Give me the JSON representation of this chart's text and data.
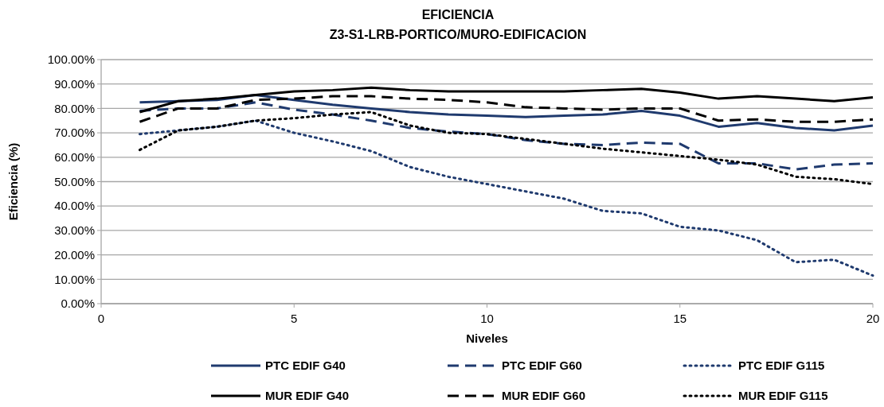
{
  "chart_data": {
    "type": "line",
    "title": "EFICIENCIA",
    "subtitle": "Z3-S1-LRB-PORTICO/MURO-EDIFICACION",
    "xlabel": "Niveles",
    "ylabel": "Eficiencia  (%)",
    "x": [
      1,
      2,
      3,
      4,
      5,
      6,
      7,
      8,
      9,
      10,
      11,
      12,
      13,
      14,
      15,
      16,
      17,
      18,
      19,
      20
    ],
    "xlim": [
      0,
      20
    ],
    "xticks": [
      0,
      5,
      10,
      15,
      20
    ],
    "ylim": [
      0,
      100
    ],
    "yticks": [
      {
        "value": 0,
        "label": "0.00%"
      },
      {
        "value": 10,
        "label": "10.00%"
      },
      {
        "value": 20,
        "label": "20.00%"
      },
      {
        "value": 30,
        "label": "30.00%"
      },
      {
        "value": 40,
        "label": "40.00%"
      },
      {
        "value": 50,
        "label": "50.00%"
      },
      {
        "value": 60,
        "label": "60.00%"
      },
      {
        "value": 70,
        "label": "70.00%"
      },
      {
        "value": 80,
        "label": "80.00%"
      },
      {
        "value": 90,
        "label": "90.00%"
      },
      {
        "value": 100,
        "label": "100.00%"
      }
    ],
    "grid": "y",
    "legend": "bottom",
    "marker": "none",
    "series": [
      {
        "name": "PTC EDIF G40",
        "color": "#1f3a6e",
        "line_style": "solid",
        "values": [
          82.5,
          83,
          83.5,
          85.5,
          83.5,
          81.5,
          80,
          78.5,
          77.5,
          77,
          76.5,
          77,
          77.5,
          79,
          77,
          72.5,
          74,
          72,
          71,
          73
        ]
      },
      {
        "name": "PTC EDIF G60",
        "color": "#1f3a6e",
        "line_style": "dashed",
        "values": [
          79,
          80,
          80,
          82.5,
          79.5,
          77.5,
          75,
          72,
          70.5,
          69.5,
          67,
          65.5,
          65,
          66,
          65.5,
          57.5,
          57.5,
          55,
          57,
          57.5
        ]
      },
      {
        "name": "PTC EDIF G115",
        "color": "#1f3a6e",
        "line_style": "dotted",
        "values": [
          69.5,
          71,
          72.5,
          75,
          70,
          66.5,
          62.5,
          56,
          52,
          49,
          46,
          43,
          38,
          37,
          31.5,
          30,
          26,
          17,
          18,
          11.5
        ]
      },
      {
        "name": "MUR EDIF G40",
        "color": "#000000",
        "line_style": "solid",
        "values": [
          78.5,
          83,
          84,
          85.5,
          87,
          87.5,
          88.5,
          87.5,
          87,
          87,
          87,
          87,
          87.5,
          88,
          86.5,
          84,
          85,
          84,
          83,
          84.5
        ]
      },
      {
        "name": "MUR EDIF G60",
        "color": "#000000",
        "line_style": "dashed",
        "values": [
          74.5,
          80,
          80,
          83.5,
          84,
          85,
          85,
          84,
          83.5,
          82.5,
          80.5,
          80,
          79.5,
          80,
          80,
          75,
          75.5,
          74.5,
          74.5,
          75.5
        ]
      },
      {
        "name": "MUR EDIF G115",
        "color": "#000000",
        "line_style": "dotted",
        "values": [
          63,
          71,
          72.5,
          75,
          76,
          77.5,
          78.5,
          73,
          70,
          69.5,
          67.5,
          65.5,
          63.5,
          62,
          60.5,
          59,
          57,
          52,
          51,
          49
        ]
      }
    ]
  }
}
